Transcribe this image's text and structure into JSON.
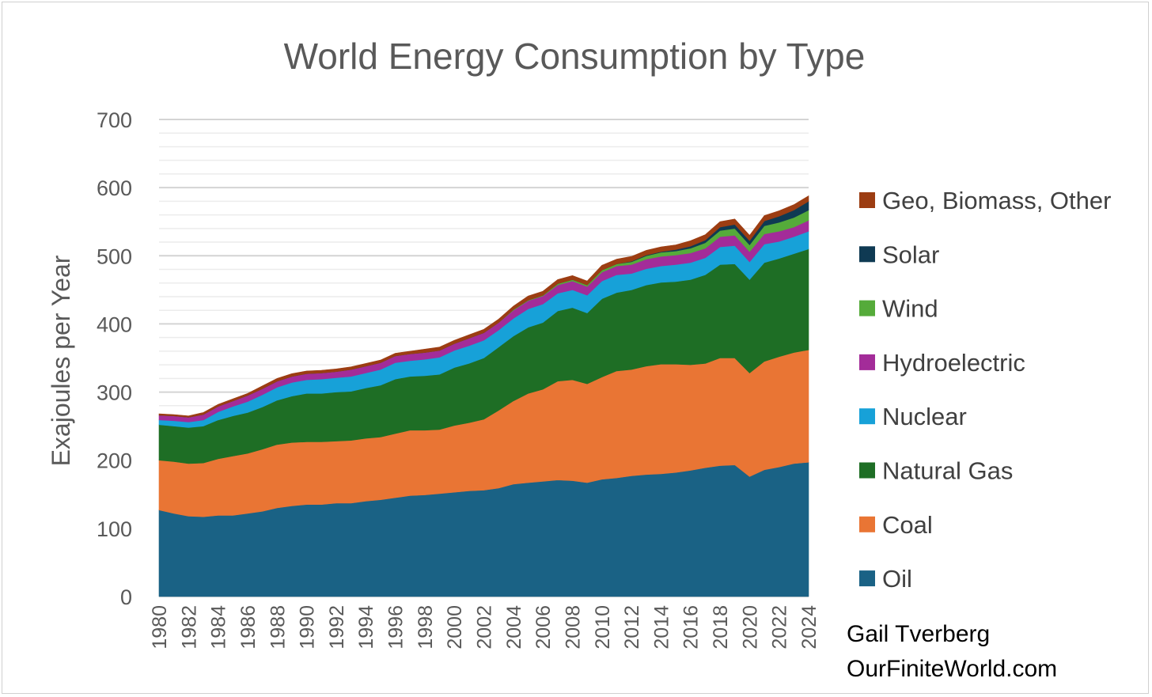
{
  "chart_data": {
    "type": "area",
    "stacked": true,
    "title": "World Energy Consumption by Type",
    "ylabel": "Exajoules per Year",
    "xlabel": "",
    "ylim": [
      0,
      700
    ],
    "yticks": [
      0,
      100,
      200,
      300,
      400,
      500,
      600,
      700
    ],
    "minor_gridlines": true,
    "x": [
      1980,
      1981,
      1982,
      1983,
      1984,
      1985,
      1986,
      1987,
      1988,
      1989,
      1990,
      1991,
      1992,
      1993,
      1994,
      1995,
      1996,
      1997,
      1998,
      1999,
      2000,
      2001,
      2002,
      2003,
      2004,
      2005,
      2006,
      2007,
      2008,
      2009,
      2010,
      2011,
      2012,
      2013,
      2014,
      2015,
      2016,
      2017,
      2018,
      2019,
      2020,
      2021,
      2022,
      2023,
      2024
    ],
    "xticks": [
      "1980",
      "1982",
      "1984",
      "1986",
      "1988",
      "1990",
      "1992",
      "1994",
      "1996",
      "1998",
      "2000",
      "2002",
      "2004",
      "2006",
      "2008",
      "2010",
      "2012",
      "2014",
      "2016",
      "2018",
      "2020",
      "2022",
      "2024"
    ],
    "legend_position": "right",
    "series": [
      {
        "name": "Oil",
        "color": "#1a6285",
        "values": [
          127,
          122,
          118,
          117,
          119,
          119,
          122,
          125,
          130,
          133,
          135,
          135,
          137,
          137,
          140,
          142,
          145,
          148,
          149,
          151,
          153,
          155,
          156,
          159,
          165,
          167,
          169,
          171,
          170,
          167,
          172,
          174,
          177,
          179,
          180,
          182,
          185,
          189,
          192,
          193,
          176,
          186,
          190,
          195,
          197
        ]
      },
      {
        "name": "Coal",
        "color": "#e97534",
        "values": [
          73,
          76,
          77,
          79,
          83,
          87,
          88,
          91,
          93,
          93,
          92,
          92,
          91,
          92,
          92,
          92,
          94,
          96,
          95,
          94,
          98,
          100,
          104,
          114,
          122,
          131,
          135,
          145,
          148,
          145,
          150,
          157,
          156,
          159,
          161,
          159,
          155,
          153,
          158,
          157,
          152,
          159,
          162,
          163,
          165
        ]
      },
      {
        "name": "Natural Gas",
        "color": "#1e6e25",
        "values": [
          52,
          52,
          53,
          54,
          57,
          59,
          60,
          62,
          65,
          68,
          71,
          71,
          72,
          72,
          74,
          76,
          80,
          79,
          80,
          81,
          85,
          87,
          90,
          93,
          95,
          97,
          98,
          103,
          106,
          104,
          115,
          115,
          117,
          119,
          120,
          121,
          125,
          130,
          137,
          138,
          137,
          145,
          144,
          145,
          148
        ]
      },
      {
        "name": "Nuclear",
        "color": "#17a1d8",
        "values": [
          7,
          8,
          8,
          9,
          12,
          14,
          16,
          18,
          19,
          20,
          20,
          21,
          21,
          22,
          22,
          23,
          24,
          23,
          24,
          25,
          25,
          26,
          26,
          25,
          26,
          27,
          27,
          26,
          26,
          26,
          26,
          26,
          24,
          24,
          24,
          25,
          25,
          25,
          26,
          27,
          26,
          27,
          25,
          25,
          26
        ]
      },
      {
        "name": "Hydroelectric",
        "color": "#a32c99",
        "values": [
          7,
          7,
          7,
          8,
          8,
          8,
          9,
          9,
          9,
          9,
          9,
          9,
          9,
          10,
          10,
          10,
          10,
          10,
          10,
          10,
          10,
          11,
          11,
          11,
          12,
          12,
          12,
          12,
          13,
          13,
          13,
          13,
          13,
          14,
          14,
          14,
          14,
          14,
          15,
          15,
          15,
          15,
          15,
          14,
          16
        ]
      },
      {
        "name": "Wind",
        "color": "#55ab3a",
        "values": [
          0,
          0,
          0,
          0,
          0,
          0,
          0,
          0,
          0,
          0,
          0,
          0,
          0,
          0,
          0,
          0,
          0,
          0,
          0,
          0,
          0,
          0,
          0,
          0,
          1,
          1,
          1,
          2,
          2,
          2,
          3,
          3,
          4,
          5,
          6,
          6,
          7,
          8,
          9,
          10,
          10,
          12,
          13,
          14,
          15
        ]
      },
      {
        "name": "Solar",
        "color": "#0f3a53",
        "values": [
          0,
          0,
          0,
          0,
          0,
          0,
          0,
          0,
          0,
          0,
          0,
          0,
          0,
          0,
          0,
          0,
          0,
          0,
          0,
          0,
          0,
          0,
          0,
          0,
          0,
          0,
          0,
          0,
          0,
          0,
          0,
          0,
          1,
          1,
          1,
          2,
          3,
          4,
          5,
          6,
          6,
          7,
          9,
          11,
          13
        ]
      },
      {
        "name": "Geo, Biomass, Other",
        "color": "#9c3d12",
        "values": [
          2,
          2,
          2,
          3,
          3,
          3,
          3,
          4,
          4,
          4,
          4,
          4,
          4,
          4,
          4,
          4,
          4,
          4,
          5,
          5,
          5,
          5,
          5,
          5,
          5,
          6,
          6,
          6,
          6,
          6,
          7,
          7,
          7,
          7,
          7,
          7,
          8,
          8,
          8,
          8,
          8,
          8,
          8,
          8,
          8
        ]
      }
    ],
    "legend_order": [
      "Geo, Biomass, Other",
      "Solar",
      "Wind",
      "Hydroelectric",
      "Nuclear",
      "Natural Gas",
      "Coal",
      "Oil"
    ]
  },
  "credit": {
    "line1": "Gail Tverberg",
    "line2": "OurFiniteWorld.com"
  }
}
